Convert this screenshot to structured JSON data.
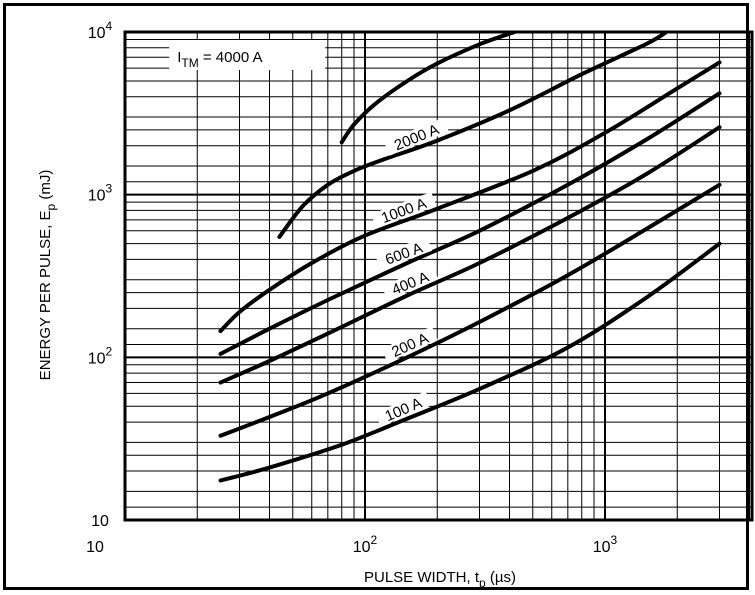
{
  "chart_data": {
    "type": "line",
    "title": "",
    "xlabel": "PULSE WIDTH, t_p (µs)",
    "ylabel": "ENERGY PER PULSE, E_p (mJ)",
    "x_scale": "log",
    "y_scale": "log",
    "xlim": [
      10,
      3000
    ],
    "ylim": [
      10,
      10000
    ],
    "grid": true,
    "x_ticks": [
      {
        "base": "10",
        "exp": ""
      },
      {
        "base": "10",
        "exp": "2"
      },
      {
        "base": "10",
        "exp": "3"
      }
    ],
    "y_ticks": [
      {
        "base": "10",
        "exp": "4"
      },
      {
        "base": "10",
        "exp": "3"
      },
      {
        "base": "10",
        "exp": "2"
      },
      {
        "base": "10",
        "exp": ""
      }
    ],
    "series": [
      {
        "name": "I_TM = 4000 A",
        "label_prefix": "I",
        "label_sub": "TM",
        "label_suffix": " = 4000 A",
        "points": [
          [
            80,
            2100
          ],
          [
            90,
            2700
          ],
          [
            110,
            3600
          ],
          [
            150,
            5000
          ],
          [
            200,
            6400
          ],
          [
            300,
            8400
          ],
          [
            420,
            10000
          ]
        ]
      },
      {
        "name": "2000 A",
        "label": "2000 A",
        "points": [
          [
            44,
            550
          ],
          [
            55,
            850
          ],
          [
            70,
            1150
          ],
          [
            90,
            1400
          ],
          [
            120,
            1650
          ],
          [
            200,
            2150
          ],
          [
            400,
            3300
          ],
          [
            800,
            5500
          ],
          [
            1500,
            8500
          ],
          [
            1800,
            10000
          ]
        ]
      },
      {
        "name": "1000 A",
        "label": "1000 A",
        "points": [
          [
            25,
            145
          ],
          [
            30,
            190
          ],
          [
            40,
            260
          ],
          [
            60,
            380
          ],
          [
            100,
            560
          ],
          [
            200,
            820
          ],
          [
            500,
            1400
          ],
          [
            1000,
            2400
          ],
          [
            2000,
            4500
          ],
          [
            3000,
            6500
          ]
        ]
      },
      {
        "name": "600 A",
        "label": "600 A",
        "points": [
          [
            25,
            105
          ],
          [
            40,
            150
          ],
          [
            70,
            225
          ],
          [
            150,
            380
          ],
          [
            300,
            600
          ],
          [
            700,
            1150
          ],
          [
            1500,
            2200
          ],
          [
            3000,
            4200
          ]
        ]
      },
      {
        "name": "400 A",
        "label": "400 A",
        "points": [
          [
            25,
            70
          ],
          [
            40,
            95
          ],
          [
            70,
            140
          ],
          [
            150,
            240
          ],
          [
            300,
            380
          ],
          [
            700,
            720
          ],
          [
            1500,
            1350
          ],
          [
            3000,
            2600
          ]
        ]
      },
      {
        "name": "200 A",
        "label": "200 A",
        "points": [
          [
            25,
            33
          ],
          [
            40,
            43
          ],
          [
            70,
            60
          ],
          [
            150,
            100
          ],
          [
            300,
            165
          ],
          [
            700,
            320
          ],
          [
            1500,
            620
          ],
          [
            3000,
            1150
          ]
        ]
      },
      {
        "name": "100 A",
        "label": "100 A",
        "points": [
          [
            25,
            17.5
          ],
          [
            40,
            21
          ],
          [
            80,
            29
          ],
          [
            150,
            42
          ],
          [
            300,
            64
          ],
          [
            700,
            115
          ],
          [
            1500,
            235
          ],
          [
            3000,
            500
          ]
        ]
      }
    ]
  }
}
